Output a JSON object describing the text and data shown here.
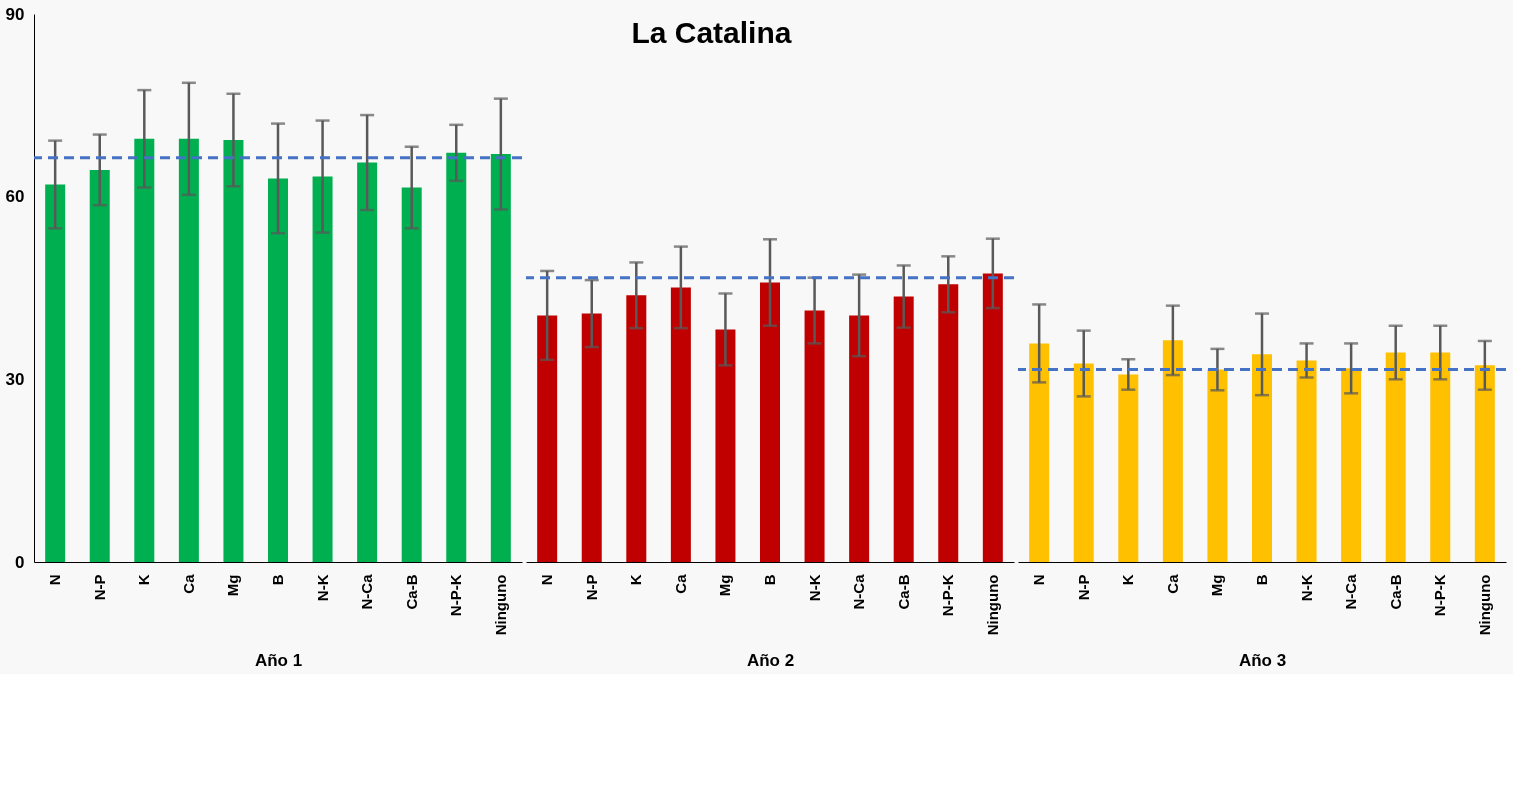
{
  "chart_data": [
    {
      "type": "bar",
      "xlabel": "Año 1",
      "categories": [
        "N",
        "N-P",
        "K",
        "Ca",
        "Mg",
        "B",
        "N-K",
        "N-Ca",
        "Ca-B",
        "N-P-K",
        "Ninguno"
      ],
      "values": [
        62.0,
        64.4,
        69.5,
        69.5,
        69.3,
        63.0,
        63.3,
        65.6,
        61.5,
        67.2,
        67.0
      ],
      "errors": [
        7.2,
        5.8,
        8.0,
        9.2,
        7.6,
        9.0,
        9.2,
        7.8,
        6.7,
        4.6,
        9.1
      ],
      "color": "#00b050",
      "ylim": [
        0,
        90
      ],
      "yticks": [
        0,
        30,
        60,
        90
      ],
      "grid": false,
      "ref_lines": [
        {
          "axis": "y",
          "value": 66.4,
          "color": "#4472c4",
          "line_style": "dashed"
        }
      ]
    },
    {
      "type": "bar",
      "title": "La Catalina",
      "xlabel": "Año 2",
      "categories": [
        "N",
        "N-P",
        "K",
        "Ca",
        "Mg",
        "B",
        "N-K",
        "N-Ca",
        "Ca-B",
        "N-P-K",
        "Ninguno"
      ],
      "values": [
        40.5,
        40.8,
        43.8,
        45.1,
        38.2,
        45.9,
        41.3,
        40.5,
        43.6,
        45.6,
        47.4
      ],
      "errors": [
        7.3,
        5.5,
        5.4,
        6.7,
        5.9,
        7.1,
        5.4,
        6.7,
        5.1,
        4.6,
        5.7
      ],
      "color": "#c00000",
      "ylim": [
        0,
        90
      ],
      "yticks": [
        0,
        30,
        60,
        90
      ],
      "grid": false,
      "tick_labels": "x",
      "ref_lines": [
        {
          "axis": "y",
          "value": 46.7,
          "color": "#4472c4",
          "line_style": "dashed"
        }
      ]
    },
    {
      "type": "bar",
      "xlabel": "Año 3",
      "categories": [
        "N",
        "N-P",
        "K",
        "Ca",
        "Mg",
        "B",
        "N-K",
        "N-Ca",
        "Ca-B",
        "N-P-K",
        "Ninguno"
      ],
      "values": [
        35.9,
        32.6,
        30.8,
        36.4,
        31.6,
        34.1,
        33.1,
        31.8,
        34.4,
        34.4,
        32.3
      ],
      "errors": [
        6.4,
        5.4,
        2.5,
        5.7,
        3.4,
        6.7,
        2.8,
        4.1,
        4.4,
        4.4,
        4.0
      ],
      "color": "#ffc000",
      "ylim": [
        0,
        90
      ],
      "yticks": [
        0,
        30,
        60,
        90
      ],
      "grid": false,
      "tick_labels": "x",
      "ref_lines": [
        {
          "axis": "y",
          "value": 31.6,
          "color": "#4472c4",
          "line_style": "dashed"
        }
      ]
    }
  ]
}
